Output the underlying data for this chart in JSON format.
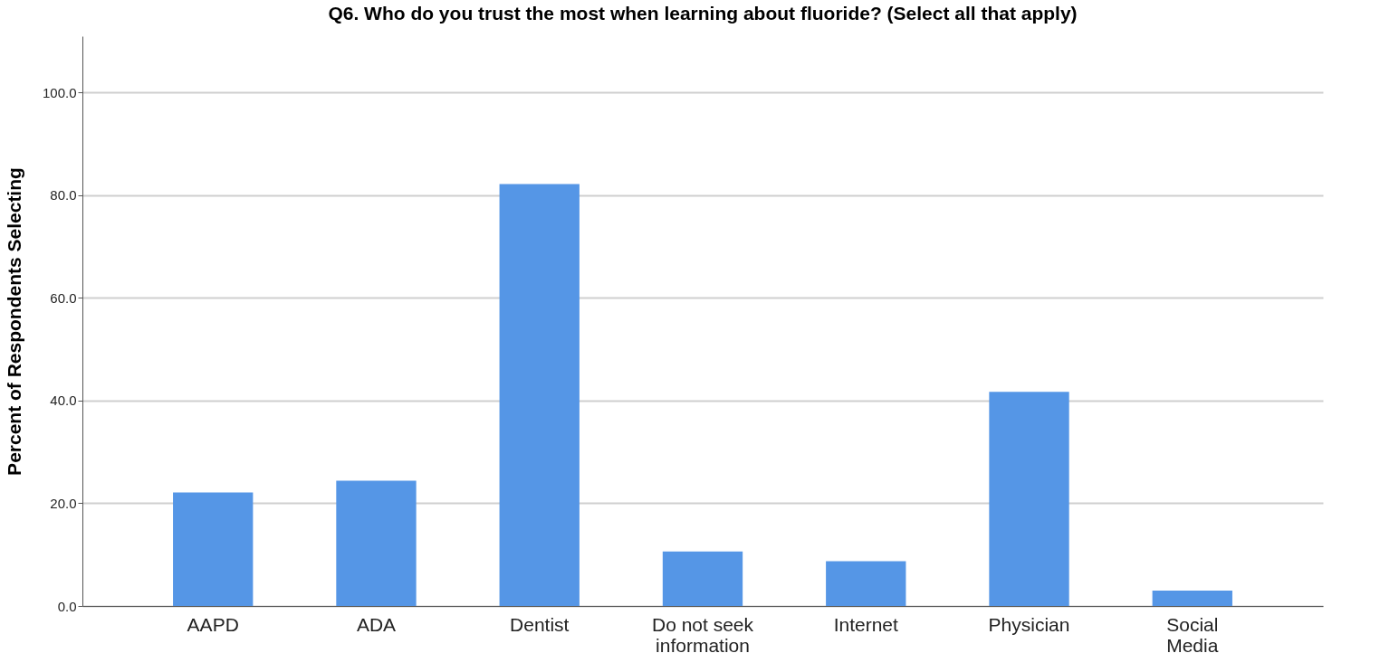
{
  "chart_data": {
    "type": "bar",
    "title": "Q6. Who do you trust the most when learning about fluoride? (Select all that apply)",
    "ylabel": "Percent of Respondents Selecting",
    "categories": [
      "AAPD",
      "ADA",
      "Dentist",
      "Do not seek information",
      "Internet",
      "Physician",
      "Social Media"
    ],
    "values": [
      22.1,
      24.4,
      82.2,
      10.6,
      8.7,
      41.7,
      3.0
    ],
    "color": "#5596e6",
    "ylim": [
      0,
      111
    ],
    "yticks": [
      {
        "value": 0,
        "label": "0.0"
      },
      {
        "value": 20,
        "label": "20.0"
      },
      {
        "value": 40,
        "label": "40.0"
      },
      {
        "value": 60,
        "label": "60.0"
      },
      {
        "value": 80,
        "label": "80.0"
      },
      {
        "value": 100,
        "label": "100.0"
      }
    ],
    "grid": "y"
  }
}
